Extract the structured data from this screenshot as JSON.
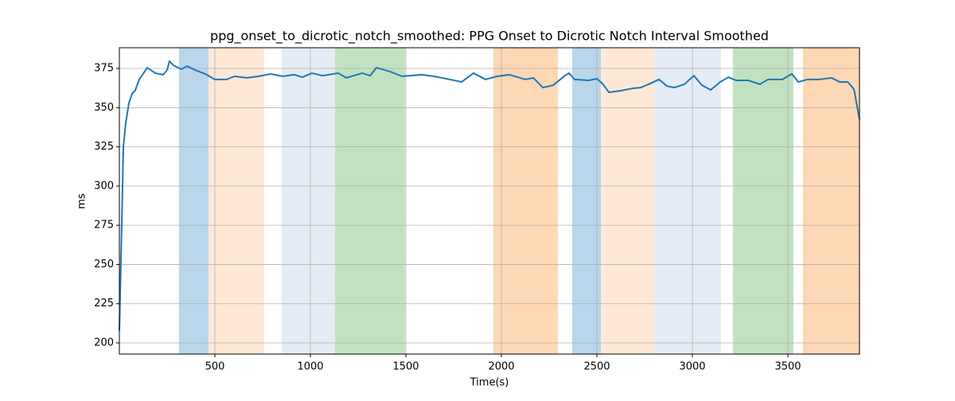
{
  "chart_data": {
    "type": "line",
    "title": "ppg_onset_to_dicrotic_notch_smoothed: PPG Onset to Dicrotic Notch Interval Smoothed",
    "xlabel": "Time(s)",
    "ylabel": "ms",
    "x": [
      0,
      8,
      21,
      33,
      50,
      67,
      83,
      104,
      146,
      188,
      229,
      250,
      262,
      283,
      325,
      354,
      396,
      450,
      500,
      562,
      604,
      667,
      729,
      792,
      854,
      917,
      958,
      1008,
      1063,
      1146,
      1188,
      1271,
      1313,
      1346,
      1417,
      1479,
      1521,
      1583,
      1646,
      1729,
      1792,
      1854,
      1917,
      1979,
      2042,
      2125,
      2167,
      2217,
      2271,
      2333,
      2354,
      2383,
      2458,
      2500,
      2529,
      2563,
      2625,
      2688,
      2729,
      2771,
      2825,
      2867,
      2904,
      2958,
      3008,
      3050,
      3096,
      3146,
      3188,
      3229,
      3292,
      3354,
      3396,
      3471,
      3521,
      3554,
      3604,
      3667,
      3729,
      3771,
      3813,
      3846,
      3875
    ],
    "values": [
      208,
      251,
      325,
      340,
      353,
      359,
      361,
      368,
      375.5,
      372,
      371,
      374,
      379.6,
      377,
      374.5,
      376.5,
      374,
      371.5,
      368,
      368,
      370,
      369,
      370,
      371.5,
      370,
      371,
      369.4,
      372,
      370.4,
      372,
      369,
      372,
      370.4,
      375.5,
      373,
      370,
      370.4,
      371,
      370,
      368,
      366.4,
      372,
      368,
      370,
      371,
      368,
      369,
      362.8,
      364.3,
      370.4,
      372,
      368,
      367.4,
      368.4,
      365.4,
      359.8,
      360.8,
      362.3,
      362.8,
      364.9,
      368,
      363.8,
      362.8,
      364.9,
      370.4,
      364.3,
      361.3,
      366.4,
      369.4,
      367.4,
      367.4,
      364.9,
      368,
      368,
      371.5,
      366.4,
      368,
      368,
      369,
      366.4,
      366.4,
      361.8,
      342.5
    ],
    "color": "#1f77b4",
    "spans": [
      {
        "start": 312,
        "end": 467,
        "color": "#bad6ea"
      },
      {
        "start": 467,
        "end": 758,
        "color": "#ffe9d6"
      },
      {
        "start": 850,
        "end": 1129,
        "color": "#e5ecf6"
      },
      {
        "start": 1129,
        "end": 1496,
        "color": "#c0e2c0"
      },
      {
        "start": 1958,
        "end": 2296,
        "color": "#fed7b4"
      },
      {
        "start": 2371,
        "end": 2521,
        "color": "#bad6ea"
      },
      {
        "start": 2521,
        "end": 2800,
        "color": "#ffe9d6"
      },
      {
        "start": 2800,
        "end": 3150,
        "color": "#e5ecf6"
      },
      {
        "start": 3212,
        "end": 3529,
        "color": "#c0e2c0"
      },
      {
        "start": 3579,
        "end": 3875,
        "color": "#fed7b4"
      }
    ],
    "xlim": [
      0,
      3875
    ],
    "ylim": [
      192.9,
      388.2
    ],
    "xticks": [
      500,
      1000,
      1500,
      2000,
      2500,
      3000,
      3500
    ],
    "yticks": [
      200,
      225,
      250,
      275,
      300,
      325,
      350,
      375
    ],
    "grid": true
  }
}
